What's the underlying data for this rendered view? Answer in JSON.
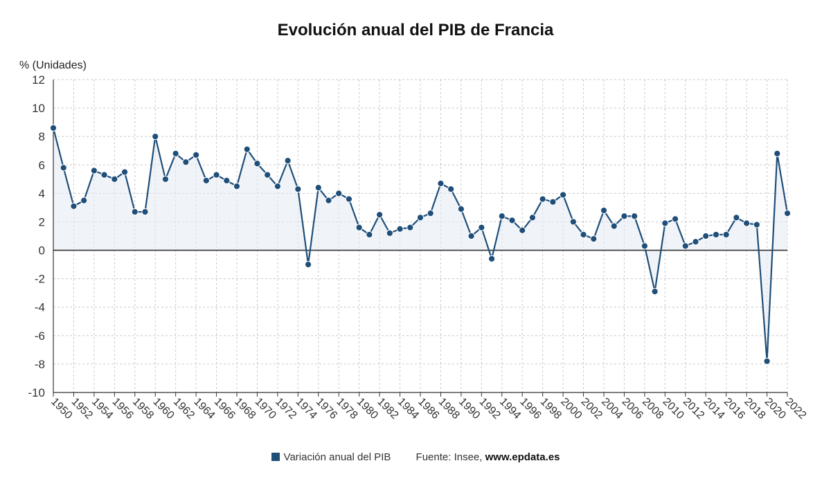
{
  "chart_data": {
    "type": "line",
    "title": "Evolución anual del PIB de Francia",
    "ylabel": "% (Unidades)",
    "ylim": [
      -10,
      12
    ],
    "yticks": [
      12,
      10,
      8,
      6,
      4,
      2,
      0,
      -2,
      -4,
      -6,
      -8,
      -10
    ],
    "xtick_labels": [
      "1950",
      "1952",
      "1954",
      "1956",
      "1958",
      "1960",
      "1962",
      "1964",
      "1966",
      "1968",
      "1970",
      "1972",
      "1974",
      "1976",
      "1978",
      "1980",
      "1982",
      "1984",
      "1986",
      "1988",
      "1990",
      "1992",
      "1994",
      "1996",
      "1998",
      "2000",
      "2002",
      "2004",
      "2006",
      "2008",
      "2010",
      "2012",
      "2014",
      "2016",
      "2018",
      "2020",
      "2022"
    ],
    "grid": true,
    "legend_position": "bottom",
    "series": [
      {
        "name": "Variación anual del PIB",
        "color": "#1f4e79",
        "x": [
          1950,
          1951,
          1952,
          1953,
          1954,
          1955,
          1956,
          1957,
          1958,
          1959,
          1960,
          1961,
          1962,
          1963,
          1964,
          1965,
          1966,
          1967,
          1968,
          1969,
          1970,
          1971,
          1972,
          1973,
          1974,
          1975,
          1976,
          1977,
          1978,
          1979,
          1980,
          1981,
          1982,
          1983,
          1984,
          1985,
          1986,
          1987,
          1988,
          1989,
          1990,
          1991,
          1992,
          1993,
          1994,
          1995,
          1996,
          1997,
          1998,
          1999,
          2000,
          2001,
          2002,
          2003,
          2004,
          2005,
          2006,
          2007,
          2008,
          2009,
          2010,
          2011,
          2012,
          2013,
          2014,
          2015,
          2016,
          2017,
          2018,
          2019,
          2020,
          2021,
          2022
        ],
        "values": [
          8.6,
          5.8,
          3.1,
          3.5,
          5.6,
          5.3,
          5.0,
          5.5,
          2.7,
          2.7,
          8.0,
          5.0,
          6.8,
          6.2,
          6.7,
          4.9,
          5.3,
          4.9,
          4.5,
          7.1,
          6.1,
          5.3,
          4.5,
          6.3,
          4.3,
          -1.0,
          4.4,
          3.5,
          4.0,
          3.6,
          1.6,
          1.1,
          2.5,
          1.2,
          1.5,
          1.6,
          2.3,
          2.6,
          4.7,
          4.3,
          2.9,
          1.0,
          1.6,
          -0.6,
          2.4,
          2.1,
          1.4,
          2.3,
          3.6,
          3.4,
          3.9,
          2.0,
          1.1,
          0.8,
          2.8,
          1.7,
          2.4,
          2.4,
          0.3,
          -2.9,
          1.9,
          2.2,
          0.3,
          0.6,
          1.0,
          1.1,
          1.1,
          2.3,
          1.9,
          1.8,
          -7.8,
          6.8,
          2.6
        ]
      }
    ]
  },
  "legend": {
    "source_prefix": "Fuente: Insee,",
    "source_site": "www.epdata.es"
  },
  "colors": {
    "series": "#1f4e79",
    "area": "#e6edf5",
    "grid": "#c8c8c8"
  }
}
